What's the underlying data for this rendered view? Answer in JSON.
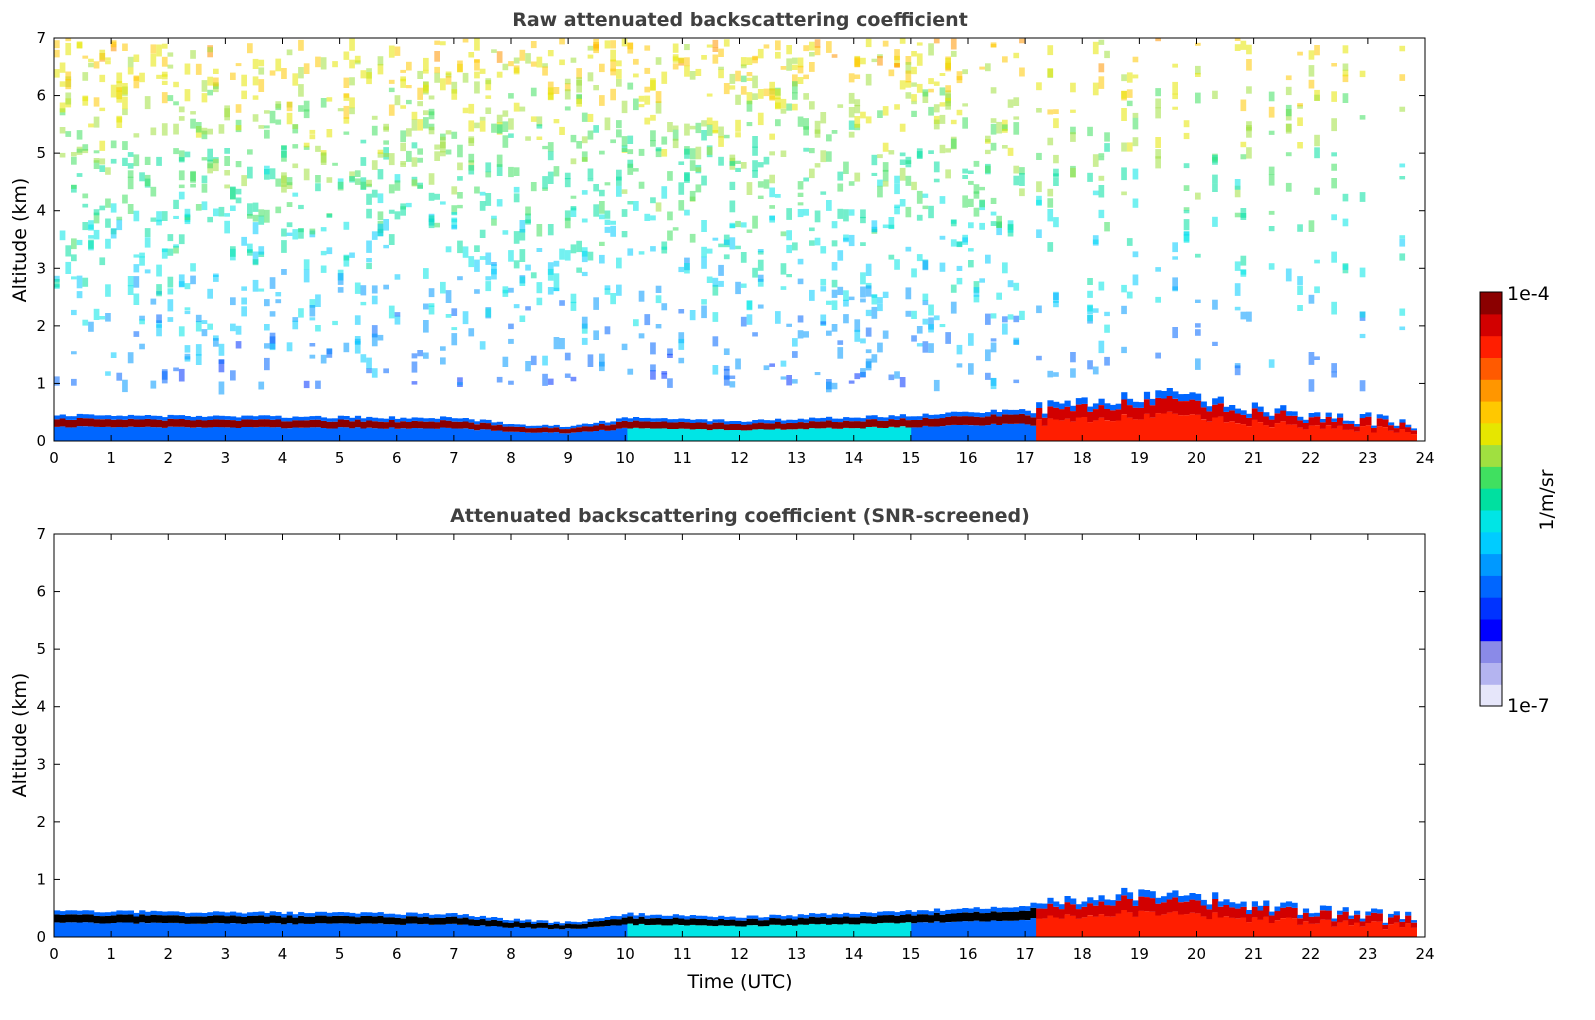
{
  "chart_data": [
    {
      "type": "heatmap",
      "title": "Raw attenuated backscattering coefficient",
      "xlabel": "",
      "ylabel": "Altitude (km)",
      "xlim": [
        0,
        24
      ],
      "ylim": [
        0,
        7
      ],
      "xticks": [
        "0",
        "1",
        "2",
        "3",
        "4",
        "5",
        "6",
        "7",
        "8",
        "9",
        "10",
        "11",
        "12",
        "13",
        "14",
        "15",
        "16",
        "17",
        "18",
        "19",
        "20",
        "21",
        "22",
        "23",
        "24"
      ],
      "yticks": [
        "0",
        "1",
        "2",
        "3",
        "4",
        "5",
        "6",
        "7"
      ],
      "data_end_hour": 23.85,
      "boundary_layer_top_km": [
        {
          "t": 0,
          "z": 0.45
        },
        {
          "t": 7.0,
          "z": 0.4
        },
        {
          "t": 8.0,
          "z": 0.3
        },
        {
          "t": 9.0,
          "z": 0.25
        },
        {
          "t": 10.0,
          "z": 0.4
        },
        {
          "t": 12.0,
          "z": 0.35
        },
        {
          "t": 15.0,
          "z": 0.45
        },
        {
          "t": 17.0,
          "z": 0.55
        },
        {
          "t": 18.0,
          "z": 0.7
        },
        {
          "t": 19.5,
          "z": 0.8
        },
        {
          "t": 21.0,
          "z": 0.55
        },
        {
          "t": 23.85,
          "z": 0.3
        }
      ],
      "noise": "yes"
    },
    {
      "type": "heatmap",
      "title": "Attenuated backscattering coefficient (SNR-screened)",
      "xlabel": "Time (UTC)",
      "ylabel": "Altitude (km)",
      "xlim": [
        0,
        24
      ],
      "ylim": [
        0,
        7
      ],
      "xticks": [
        "0",
        "1",
        "2",
        "3",
        "4",
        "5",
        "6",
        "7",
        "8",
        "9",
        "10",
        "11",
        "12",
        "13",
        "14",
        "15",
        "16",
        "17",
        "18",
        "19",
        "20",
        "21",
        "22",
        "23",
        "24"
      ],
      "yticks": [
        "0",
        "1",
        "2",
        "3",
        "4",
        "5",
        "6",
        "7"
      ],
      "data_end_hour": 23.85,
      "boundary_layer_top_km": [
        {
          "t": 0,
          "z": 0.45
        },
        {
          "t": 7.0,
          "z": 0.4
        },
        {
          "t": 8.0,
          "z": 0.3
        },
        {
          "t": 9.0,
          "z": 0.25
        },
        {
          "t": 10.0,
          "z": 0.4
        },
        {
          "t": 12.0,
          "z": 0.35
        },
        {
          "t": 15.0,
          "z": 0.45
        },
        {
          "t": 17.0,
          "z": 0.55
        },
        {
          "t": 18.0,
          "z": 0.7
        },
        {
          "t": 19.5,
          "z": 0.8
        },
        {
          "t": 21.0,
          "z": 0.55
        },
        {
          "t": 23.85,
          "z": 0.3
        }
      ],
      "noise": "no"
    }
  ],
  "colorbar": {
    "label": "1/m/sr",
    "max_label": "1e-4",
    "min_label": "1e-7",
    "colors": [
      "#e6e6fa",
      "#b4b4f0",
      "#8a8ae8",
      "#0000ff",
      "#0033ff",
      "#0066ff",
      "#0099ff",
      "#00ccff",
      "#00e5e5",
      "#00e0a0",
      "#40e060",
      "#a0e040",
      "#e6e600",
      "#ffc800",
      "#ff9600",
      "#ff5a00",
      "#ff1e00",
      "#d20000",
      "#8b0000"
    ]
  }
}
